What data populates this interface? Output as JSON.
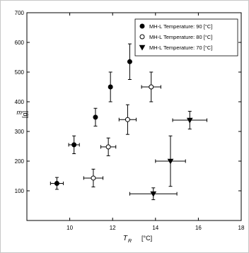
{
  "chart_data": {
    "type": "scatter",
    "title": "",
    "xlabel": "T",
    "xlabel_subscript": "R",
    "xlabel_unit": "[°C]",
    "ylabel": "m",
    "ylabel_unit": "[g]",
    "xlim": [
      8,
      18
    ],
    "ylim": [
      0,
      700
    ],
    "xticks": [
      10,
      12,
      14,
      16,
      18
    ],
    "yticks": [
      100,
      200,
      300,
      400,
      500,
      600,
      700
    ],
    "legend_position": "top-right",
    "grid": false,
    "series": [
      {
        "name": "MH-L Temperature: 90 [°C]",
        "marker": "filled-circle",
        "points": [
          {
            "x": 9.4,
            "y": 125,
            "xerr": 0.3,
            "yerr": 20
          },
          {
            "x": 10.2,
            "y": 255,
            "xerr": 0.25,
            "yerr": 30
          },
          {
            "x": 11.2,
            "y": 348,
            "xerr": 0.0,
            "yerr": 30
          },
          {
            "x": 11.9,
            "y": 450,
            "xerr": 0.0,
            "yerr": 50
          },
          {
            "x": 12.8,
            "y": 535,
            "xerr": 0.0,
            "yerr": 60
          }
        ]
      },
      {
        "name": "MH-L Temperature: 80 [°C]",
        "marker": "open-circle",
        "points": [
          {
            "x": 11.1,
            "y": 143,
            "xerr": 0.45,
            "yerr": 30
          },
          {
            "x": 11.8,
            "y": 248,
            "xerr": 0.35,
            "yerr": 30
          },
          {
            "x": 12.7,
            "y": 340,
            "xerr": 0.4,
            "yerr": 50
          },
          {
            "x": 13.8,
            "y": 450,
            "xerr": 0.45,
            "yerr": 50
          }
        ]
      },
      {
        "name": "MH-L Temperature: 70 [°C]",
        "marker": "filled-triangle-down",
        "points": [
          {
            "x": 13.9,
            "y": 90,
            "xerr": 1.1,
            "yerr": 20
          },
          {
            "x": 14.7,
            "y": 200,
            "xerr": 0.7,
            "yerr": 85
          },
          {
            "x": 15.6,
            "y": 338,
            "xerr": 0.8,
            "yerr": 30
          }
        ]
      }
    ]
  }
}
